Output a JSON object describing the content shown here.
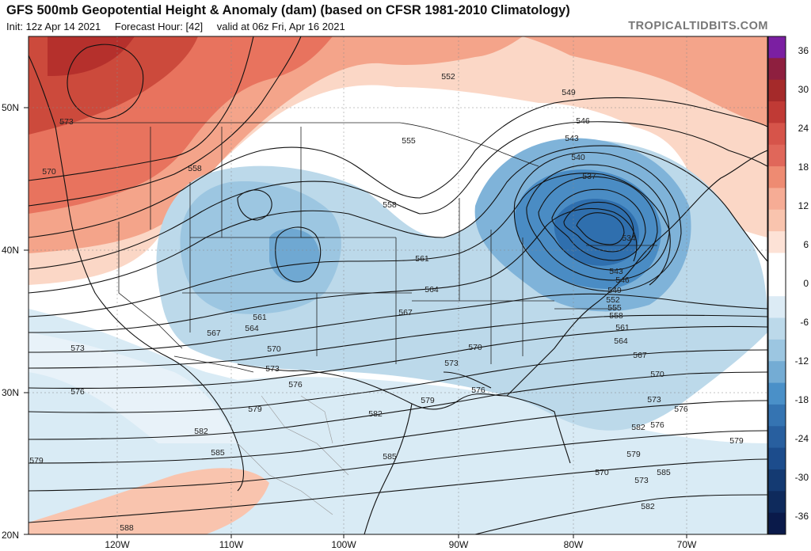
{
  "header": {
    "title": "GFS 500mb Geopotential Height & Anomaly (dam) (based on CFSR 1981-2010 Climatology)",
    "init": "Init: 12z Apr 14 2021",
    "forecast_hour": "Forecast Hour: [42]",
    "valid": "valid at 06z Fri, Apr 16 2021",
    "watermark": "TROPICALTIDBITS.COM"
  },
  "map": {
    "lat_labels": [
      "50N",
      "40N",
      "30N",
      "20N"
    ],
    "lon_labels": [
      "120W",
      "110W",
      "100W",
      "90W",
      "80W",
      "70W"
    ],
    "contour_labels": [
      "573",
      "570",
      "558",
      "555",
      "552",
      "549",
      "546",
      "543",
      "540",
      "537",
      "534",
      "543",
      "546",
      "549",
      "552",
      "555",
      "558",
      "561",
      "564",
      "567",
      "570",
      "573",
      "576",
      "579",
      "582",
      "585",
      "588",
      "561",
      "564",
      "567",
      "570",
      "573",
      "576",
      "579",
      "582",
      "585",
      "558",
      "561",
      "564",
      "567",
      "570",
      "573",
      "576",
      "579",
      "582",
      "573",
      "576",
      "579",
      "582",
      "585",
      "570",
      "573",
      "576",
      "579"
    ]
  },
  "colorbar": {
    "labels": [
      "36",
      "30",
      "24",
      "18",
      "12",
      "6",
      "0",
      "-6",
      "-12",
      "-18",
      "-24",
      "-30",
      "-36"
    ],
    "colors": {
      "pos_max": "#7b1fa2",
      "pos_high": "#a52a2a",
      "pos_mid": "#e0675a",
      "pos_low": "#f9c4ae",
      "neutral": "#ffffff",
      "neg_low": "#bcd9ea",
      "neg_mid": "#4a90c8",
      "neg_high": "#1c4c8c",
      "neg_max": "#0a1a4a"
    }
  }
}
